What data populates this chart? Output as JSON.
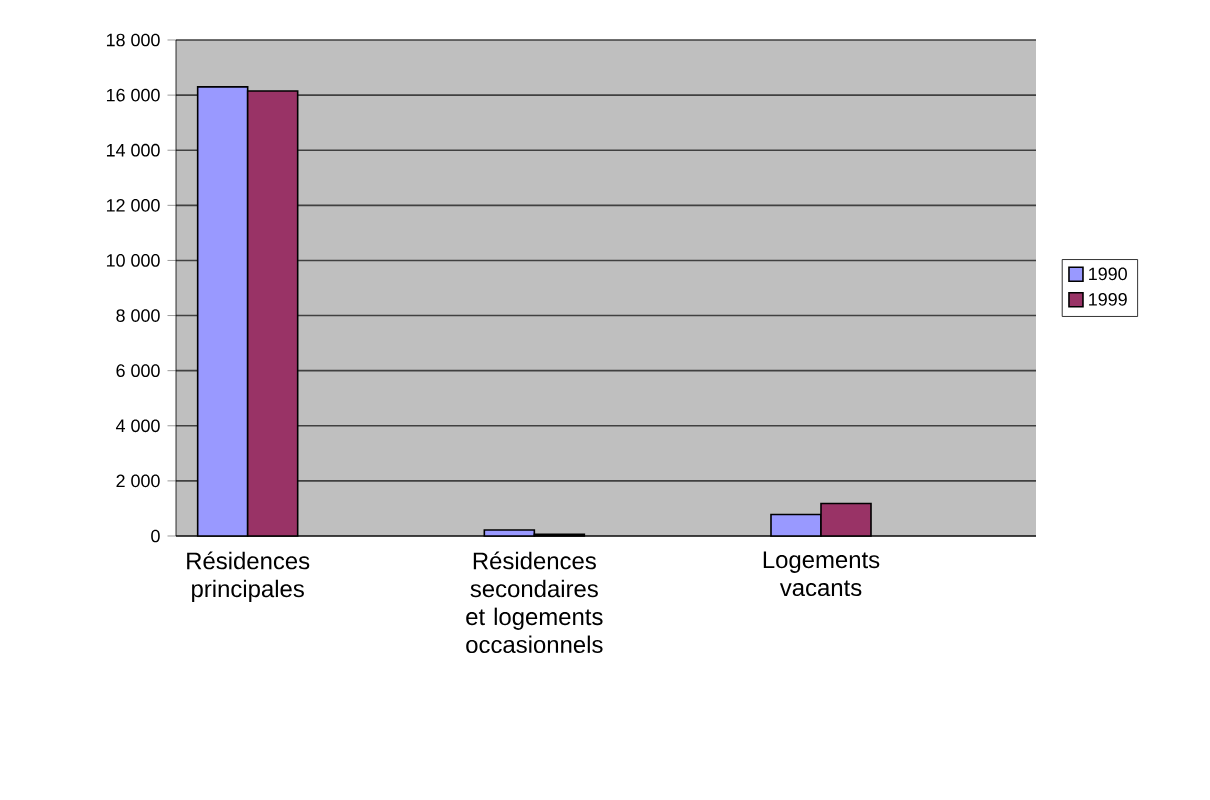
{
  "chart_data": {
    "type": "bar",
    "categories": [
      "Résidences principales",
      null,
      "Résidences secondaires et logements occasionnels",
      null,
      "Logements vacants",
      null
    ],
    "series": [
      {
        "name": "1990",
        "color": "#9999ff",
        "values": [
          16300,
          null,
          220,
          null,
          780,
          null
        ]
      },
      {
        "name": "1999",
        "color": "#993366",
        "values": [
          16150,
          null,
          60,
          null,
          1180,
          null
        ]
      }
    ],
    "ylim": [
      0,
      18000
    ],
    "yticks": [
      0,
      {
        "value": 2000,
        "label": "2 000"
      },
      {
        "value": 4000,
        "label": "4 000"
      },
      {
        "value": 6000,
        "label": "6 000"
      },
      {
        "value": 8000,
        "label": "8 000"
      },
      {
        "value": 10000,
        "label": "10 000"
      },
      {
        "value": 12000,
        "label": "12 000"
      },
      {
        "value": 14000,
        "label": "14 000"
      },
      {
        "value": 16000,
        "label": "16 000"
      },
      {
        "value": 18000,
        "label": "18 000"
      }
    ],
    "grid": "y",
    "legend": "right"
  }
}
